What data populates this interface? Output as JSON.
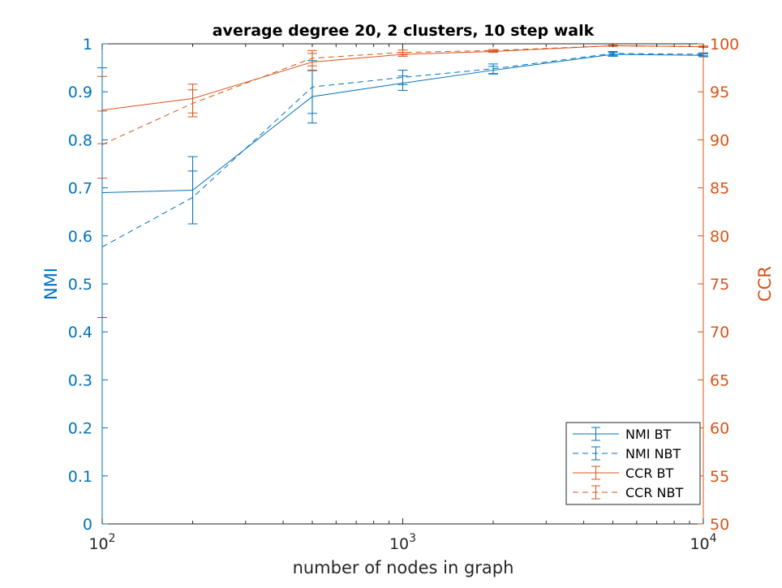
{
  "chart_data": {
    "type": "line",
    "title": "average degree 20, 2 clusters, 10 step walk",
    "xlabel": "number of nodes in graph",
    "ylabel_left": "NMI",
    "ylabel_right": "CCR",
    "x_scale": "log",
    "xlim": [
      100,
      10000
    ],
    "ylim_left": [
      0,
      1
    ],
    "ylim_right": [
      50,
      100
    ],
    "grid": false,
    "legend_position": "bottom-right",
    "x": [
      100,
      200,
      500,
      1000,
      2000,
      5000,
      10000
    ],
    "x_tick_labels": [
      {
        "base": "10",
        "exp": "2"
      },
      {
        "base": "10",
        "exp": "3"
      },
      {
        "base": "10",
        "exp": "4"
      }
    ],
    "y_ticks_left": [
      "0",
      "0.1",
      "0.2",
      "0.3",
      "0.4",
      "0.5",
      "0.6",
      "0.7",
      "0.8",
      "0.9",
      "1"
    ],
    "y_ticks_right": [
      "50",
      "55",
      "60",
      "65",
      "70",
      "75",
      "80",
      "85",
      "90",
      "95",
      "100"
    ],
    "series": [
      {
        "name": "NMI BT",
        "axis": "left",
        "color": "#0072bd",
        "dash": "solid",
        "values": [
          0.69,
          0.695,
          0.89,
          0.918,
          0.945,
          0.978,
          0.976
        ],
        "err": [
          0.26,
          0.07,
          0.055,
          0.015,
          0.008,
          0.004,
          0.003
        ]
      },
      {
        "name": "NMI NBT",
        "axis": "left",
        "color": "#0072bd",
        "dash": "dashed",
        "values": [
          0.577,
          0.68,
          0.91,
          0.93,
          0.948,
          0.98,
          0.978
        ],
        "err": [
          0.0,
          0.055,
          0.055,
          0.015,
          0.01,
          0.004,
          0.003
        ]
      },
      {
        "name": "CCR BT",
        "axis": "right",
        "color": "#d95319",
        "dash": "solid",
        "values": [
          93.1,
          94.3,
          98.1,
          98.9,
          99.2,
          99.8,
          99.7
        ],
        "err": [
          3.5,
          1.5,
          0.9,
          0.2,
          0.1,
          0.06,
          0.06
        ]
      },
      {
        "name": "CCR NBT",
        "axis": "right",
        "color": "#d95319",
        "dash": "dashed",
        "values": [
          89.5,
          93.8,
          98.5,
          99.1,
          99.3,
          99.8,
          99.7
        ],
        "err": [
          3.5,
          1.4,
          0.8,
          0.25,
          0.1,
          0.06,
          0.06
        ]
      }
    ]
  }
}
